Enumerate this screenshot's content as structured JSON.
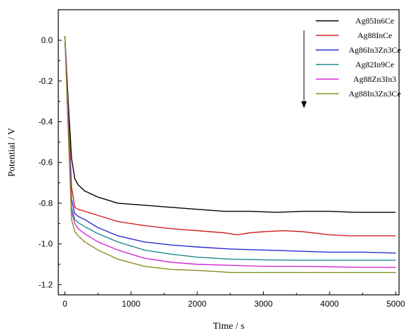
{
  "chart_data": {
    "type": "line",
    "title": "",
    "xlabel": "Time / s",
    "ylabel": "Potential / V",
    "xlim": [
      -100,
      5050
    ],
    "ylim": [
      -1.25,
      0.15
    ],
    "xticks": [
      0,
      1000,
      2000,
      3000,
      4000,
      5000
    ],
    "yticks": [
      0.0,
      -0.2,
      -0.4,
      -0.6,
      -0.8,
      -1.0,
      -1.2
    ],
    "xtick_labels": [
      "0",
      "1000",
      "2000",
      "3000",
      "4000",
      "5000"
    ],
    "ytick_labels": [
      "0.0",
      "-0.2",
      "-0.4",
      "-0.6",
      "-0.8",
      "-1.0",
      "-1.2"
    ],
    "grid": false,
    "legend_position": "top-right",
    "arrow": "downward, beside legend",
    "series": [
      {
        "name": "Ag85In6Ce",
        "color": "#000000",
        "x": [
          0,
          50,
          100,
          150,
          200,
          300,
          500,
          800,
          1200,
          1600,
          2000,
          2400,
          2800,
          3200,
          3600,
          4000,
          4400,
          4800,
          5000
        ],
        "y": [
          0.02,
          -0.3,
          -0.58,
          -0.68,
          -0.71,
          -0.74,
          -0.77,
          -0.8,
          -0.81,
          -0.82,
          -0.83,
          -0.84,
          -0.84,
          -0.845,
          -0.84,
          -0.84,
          -0.845,
          -0.845,
          -0.845
        ]
      },
      {
        "name": "Ag88InCe",
        "color": "#d42020",
        "x": [
          0,
          50,
          100,
          150,
          200,
          300,
          500,
          800,
          1200,
          1600,
          2000,
          2400,
          2600,
          2800,
          3000,
          3300,
          3600,
          4000,
          4300,
          4600,
          5000
        ],
        "y": [
          0.02,
          -0.35,
          -0.72,
          -0.82,
          -0.83,
          -0.84,
          -0.86,
          -0.89,
          -0.91,
          -0.925,
          -0.935,
          -0.945,
          -0.955,
          -0.945,
          -0.94,
          -0.935,
          -0.94,
          -0.955,
          -0.96,
          -0.96,
          -0.96
        ]
      },
      {
        "name": "Ag86In3Zn3Ce",
        "color": "#2a2ad4",
        "x": [
          0,
          50,
          100,
          150,
          200,
          300,
          500,
          800,
          1200,
          1600,
          2000,
          2500,
          3000,
          3500,
          4000,
          4500,
          5000
        ],
        "y": [
          0.02,
          -0.38,
          -0.78,
          -0.85,
          -0.865,
          -0.88,
          -0.92,
          -0.96,
          -0.99,
          -1.005,
          -1.015,
          -1.025,
          -1.03,
          -1.035,
          -1.04,
          -1.04,
          -1.045
        ]
      },
      {
        "name": "Ag82In9Ce",
        "color": "#1f8a8a",
        "x": [
          0,
          50,
          100,
          150,
          200,
          300,
          500,
          800,
          1200,
          1600,
          2000,
          2500,
          3000,
          3500,
          4000,
          4500,
          5000
        ],
        "y": [
          0.02,
          -0.4,
          -0.82,
          -0.88,
          -0.895,
          -0.915,
          -0.95,
          -0.99,
          -1.03,
          -1.05,
          -1.065,
          -1.075,
          -1.078,
          -1.08,
          -1.08,
          -1.08,
          -1.08
        ]
      },
      {
        "name": "Ag88Zn3In3",
        "color": "#d42ad4",
        "x": [
          0,
          50,
          100,
          150,
          200,
          300,
          500,
          800,
          1200,
          1600,
          2000,
          2500,
          3000,
          3500,
          4000,
          4500,
          5000
        ],
        "y": [
          0.02,
          -0.42,
          -0.84,
          -0.9,
          -0.925,
          -0.95,
          -0.99,
          -1.03,
          -1.07,
          -1.09,
          -1.1,
          -1.105,
          -1.11,
          -1.11,
          -1.112,
          -1.115,
          -1.115
        ]
      },
      {
        "name": "Ag88In3Zn3Ce",
        "color": "#8a8a1f",
        "x": [
          0,
          50,
          100,
          150,
          200,
          300,
          500,
          800,
          1200,
          1600,
          2000,
          2500,
          3000,
          3500,
          4000,
          4500,
          5000
        ],
        "y": [
          0.02,
          -0.45,
          -0.88,
          -0.94,
          -0.96,
          -0.99,
          -1.03,
          -1.075,
          -1.11,
          -1.125,
          -1.13,
          -1.14,
          -1.14,
          -1.14,
          -1.14,
          -1.14,
          -1.14
        ]
      }
    ]
  }
}
